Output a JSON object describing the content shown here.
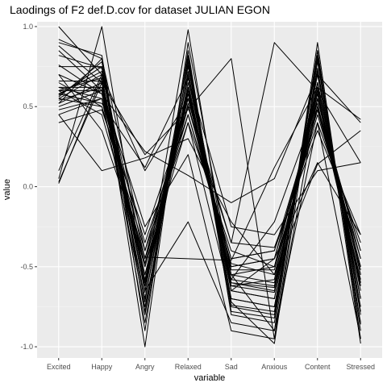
{
  "chart_data": {
    "type": "line",
    "title": "Laodings of F2 def.D.cov for dataset JULIAN EGON",
    "xlabel": "variable",
    "ylabel": "value",
    "categories": [
      "Excited",
      "Happy",
      "Angry",
      "Relaxed",
      "Sad",
      "Anxious",
      "Content",
      "Stressed"
    ],
    "ylim": [
      -1.07,
      1.03
    ],
    "yticks": [
      -1.0,
      -0.5,
      0.0,
      0.5,
      1.0
    ],
    "ytick_labels": [
      "-1.0",
      "-0.5",
      "0.0",
      "0.5",
      "1.0"
    ],
    "grid": true,
    "colors": {
      "panel": "#ebebeb",
      "grid_major": "#ffffff",
      "grid_minor": "#f5f5f5",
      "line": "#000000"
    },
    "series": [
      {
        "values": [
          0.57,
          0.75,
          -0.66,
          0.75,
          -0.6,
          -0.63,
          0.62,
          -0.55
        ]
      },
      {
        "values": [
          0.55,
          0.7,
          -0.45,
          0.6,
          -0.55,
          -0.5,
          0.58,
          -0.6
        ]
      },
      {
        "values": [
          0.6,
          0.68,
          -0.7,
          0.7,
          -0.65,
          -0.7,
          0.6,
          -0.7
        ]
      },
      {
        "values": [
          0.52,
          0.65,
          -0.55,
          0.55,
          -0.5,
          -0.45,
          0.55,
          -0.45
        ]
      },
      {
        "values": [
          0.58,
          0.72,
          -0.6,
          0.68,
          -0.62,
          -0.58,
          0.65,
          -0.65
        ]
      },
      {
        "values": [
          0.62,
          0.55,
          -0.75,
          0.62,
          -0.58,
          -0.62,
          0.55,
          -0.58
        ]
      },
      {
        "values": [
          0.5,
          0.6,
          -0.5,
          0.5,
          -0.45,
          -0.4,
          0.5,
          -0.4
        ]
      },
      {
        "values": [
          0.56,
          0.78,
          -0.65,
          0.8,
          -0.7,
          -0.75,
          0.7,
          -0.75
        ]
      },
      {
        "values": [
          1.0,
          0.7,
          -1.0,
          0.9,
          -0.55,
          -0.9,
          0.9,
          -0.95
        ]
      },
      {
        "values": [
          0.92,
          0.8,
          -0.9,
          0.85,
          -0.8,
          -0.85,
          0.85,
          -0.9
        ]
      },
      {
        "values": [
          0.88,
          0.65,
          -0.85,
          0.78,
          -0.75,
          -0.8,
          0.8,
          -0.85
        ]
      },
      {
        "values": [
          0.9,
          0.82,
          -0.8,
          0.72,
          -0.72,
          -0.98,
          0.78,
          -0.8
        ]
      },
      {
        "values": [
          0.85,
          0.6,
          -0.7,
          0.65,
          -0.65,
          -0.7,
          0.72,
          -0.7
        ]
      },
      {
        "values": [
          0.75,
          0.75,
          -0.6,
          0.6,
          -0.6,
          -0.65,
          0.65,
          -0.62
        ]
      },
      {
        "values": [
          0.7,
          0.58,
          -0.55,
          0.52,
          -0.55,
          -0.6,
          0.58,
          -0.55
        ]
      },
      {
        "values": [
          0.65,
          0.5,
          -0.45,
          0.45,
          -0.48,
          -0.55,
          0.5,
          -0.5
        ]
      },
      {
        "values": [
          0.6,
          0.45,
          -0.5,
          0.4,
          -0.4,
          -0.5,
          0.45,
          -0.45
        ]
      },
      {
        "values": [
          0.55,
          0.5,
          -0.4,
          0.55,
          -0.5,
          -0.45,
          0.48,
          -0.4
        ]
      },
      {
        "values": [
          0.45,
          0.55,
          -0.35,
          0.45,
          -0.45,
          -0.4,
          0.4,
          -0.35
        ]
      },
      {
        "values": [
          0.4,
          0.48,
          -0.3,
          0.5,
          -0.35,
          -0.38,
          0.35,
          -0.3
        ]
      },
      {
        "values": [
          0.05,
          1.0,
          -0.6,
          0.98,
          -0.65,
          -0.45,
          0.15,
          -0.3
        ]
      },
      {
        "values": [
          0.02,
          0.68,
          -0.65,
          -0.22,
          -0.85,
          -0.9,
          0.4,
          -0.95
        ]
      },
      {
        "values": [
          0.03,
          0.65,
          0.2,
          0.48,
          0.8,
          -0.95,
          0.85,
          -0.98
        ]
      },
      {
        "values": [
          0.1,
          0.7,
          0.1,
          0.55,
          -0.35,
          0.9,
          0.6,
          0.15
        ]
      },
      {
        "values": [
          0.76,
          0.58,
          0.22,
          0.07,
          -0.1,
          0.05,
          0.7,
          0.4
        ]
      },
      {
        "values": [
          0.45,
          0.1,
          0.18,
          0.3,
          -0.22,
          -0.55,
          0.14,
          0.35
        ]
      },
      {
        "values": [
          0.7,
          0.35,
          -0.44,
          -0.45,
          -0.46,
          0.12,
          0.62,
          0.42
        ]
      },
      {
        "values": [
          0.58,
          0.52,
          0.12,
          0.68,
          -0.25,
          -0.3,
          0.1,
          0.15
        ]
      },
      {
        "values": [
          0.6,
          0.6,
          -0.25,
          0.2,
          -0.9,
          -0.95,
          0.55,
          -0.5
        ]
      },
      {
        "values": [
          0.52,
          0.8,
          -0.4,
          0.4,
          -0.7,
          -0.75,
          0.65,
          -0.7
        ]
      },
      {
        "values": [
          0.62,
          0.62,
          -0.58,
          0.62,
          -0.58,
          -0.22,
          0.52,
          -0.62
        ]
      },
      {
        "values": [
          0.48,
          0.55,
          -0.48,
          0.58,
          -0.52,
          -0.52,
          0.48,
          -0.52
        ]
      },
      {
        "values": [
          0.66,
          0.66,
          -0.72,
          0.82,
          -0.74,
          -0.78,
          0.74,
          -0.78
        ]
      },
      {
        "values": [
          0.54,
          0.62,
          -0.62,
          0.58,
          -0.62,
          -0.66,
          0.6,
          -0.6
        ]
      },
      {
        "values": [
          0.82,
          0.74,
          -0.78,
          0.76,
          -0.78,
          -0.82,
          0.82,
          -0.86
        ]
      }
    ]
  }
}
